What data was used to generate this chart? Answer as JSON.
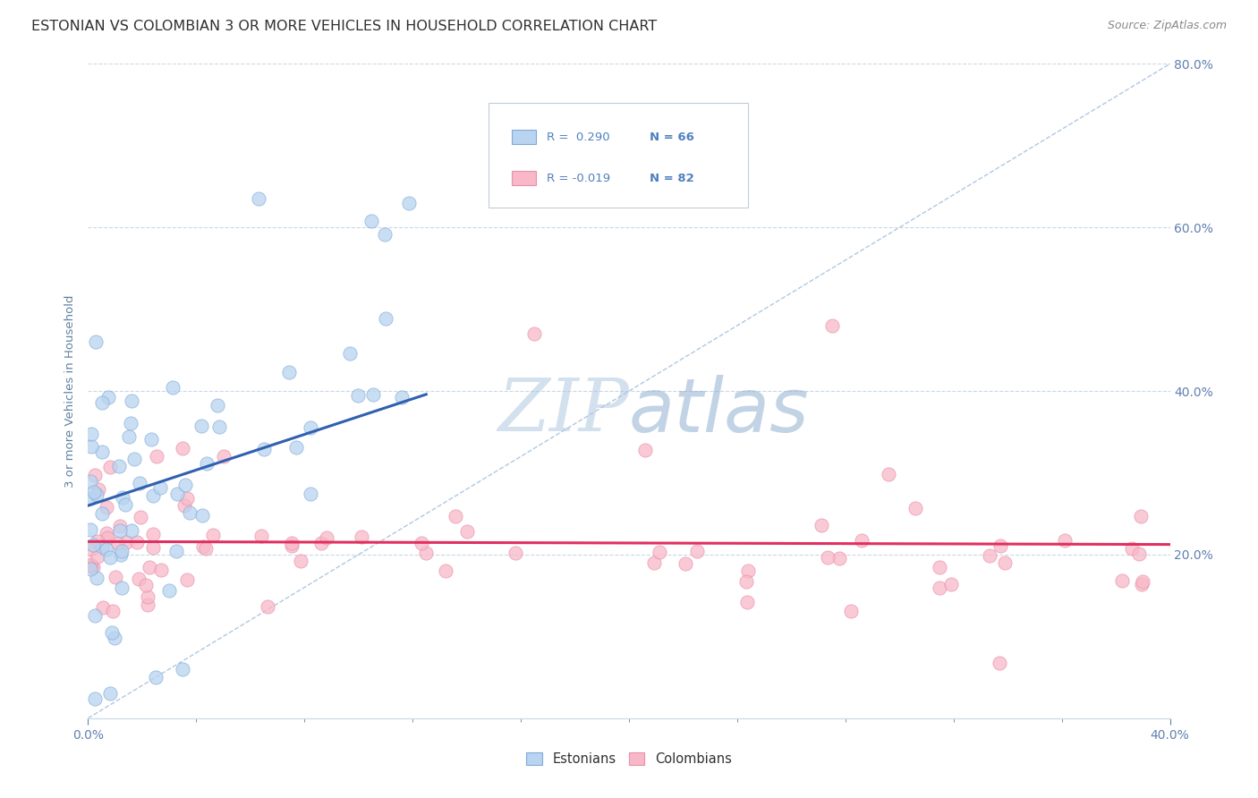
{
  "title": "ESTONIAN VS COLOMBIAN 3 OR MORE VEHICLES IN HOUSEHOLD CORRELATION CHART",
  "source": "Source: ZipAtlas.com",
  "ylabel": "3 or more Vehicles in Household",
  "watermark_zip": "ZIP",
  "watermark_atlas": "atlas",
  "xmin": 0.0,
  "xmax": 0.4,
  "ymin": 0.0,
  "ymax": 0.8,
  "yticks": [
    0.0,
    0.2,
    0.4,
    0.6,
    0.8
  ],
  "xticks": [
    0.0,
    0.4
  ],
  "ytick_labels": [
    "",
    "20.0%",
    "40.0%",
    "60.0%",
    "80.0%"
  ],
  "xtick_labels": [
    "0.0%",
    "40.0%"
  ],
  "R_estonian": 0.29,
  "N_estonian": 66,
  "R_colombian": -0.019,
  "N_colombian": 82,
  "blue_fill": "#b8d4f0",
  "blue_edge": "#80aad8",
  "pink_fill": "#f8b8c8",
  "pink_edge": "#e890a8",
  "blue_line_color": "#3060b0",
  "pink_line_color": "#e03060",
  "diagonal_color": "#b0c8e0",
  "background_color": "#ffffff",
  "title_color": "#303030",
  "axis_label_color": "#6080a0",
  "tick_color": "#6080b0",
  "grid_color": "#c8d8e8",
  "legend_text_color": "#5080c0",
  "legend_R_color": "#000000",
  "title_fontsize": 11.5,
  "source_fontsize": 9,
  "watermark_zip_color": "#b0c8e0",
  "watermark_atlas_color": "#90b0d0",
  "watermark_fontsize": 60,
  "scatter_size": 120
}
